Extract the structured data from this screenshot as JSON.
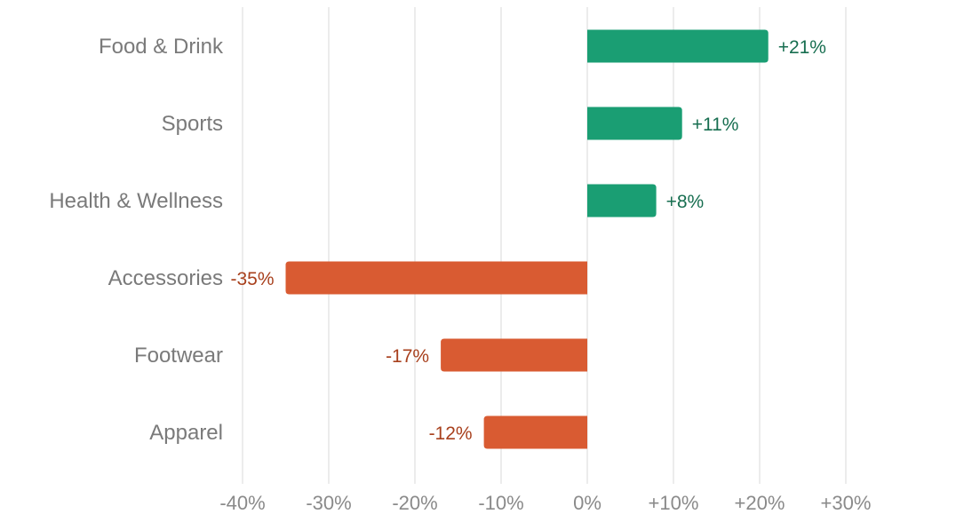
{
  "chart_data": {
    "type": "bar",
    "orientation": "horizontal",
    "title": "",
    "xlabel": "",
    "ylabel": "",
    "categories": [
      "Food & Drink",
      "Sports",
      "Health & Wellness",
      "Accessories",
      "Footwear",
      "Apparel"
    ],
    "values": [
      21,
      11,
      8,
      -35,
      -17,
      -12
    ],
    "value_labels": [
      "+21%",
      "+11%",
      "+8%",
      "-35%",
      "-17%",
      "-12%"
    ],
    "xlim": [
      -40,
      30
    ],
    "xticks": [
      -40,
      -30,
      -20,
      -10,
      0,
      10,
      20,
      30
    ],
    "xtick_labels": [
      "-40%",
      "-30%",
      "-20%",
      "-10%",
      "0%",
      "+10%",
      "+20%",
      "+30%"
    ],
    "grid": true,
    "legend": "none",
    "colors": {
      "positive": "#1a9e73",
      "negative": "#d95b32",
      "positive_label": "#176e50",
      "negative_label": "#a8401d"
    }
  }
}
